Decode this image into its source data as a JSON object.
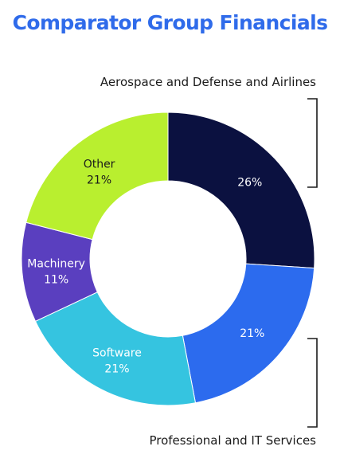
{
  "chart_data": {
    "type": "pie",
    "title": "Comparator Group Financials",
    "categories": [
      "Aerospace and Defense and Airlines",
      "Professional and IT Services",
      "Software",
      "Machinery",
      "Other"
    ],
    "values": [
      26,
      21,
      21,
      11,
      21
    ],
    "labels": [
      {
        "name": "",
        "percent": "26%"
      },
      {
        "name": "",
        "percent": "21%"
      },
      {
        "name": "Software",
        "percent": "21%"
      },
      {
        "name": "Machinery",
        "percent": "11%"
      },
      {
        "name": "Other",
        "percent": "21%"
      }
    ],
    "colors": [
      "#0b1140",
      "#2c6bee",
      "#35c4e0",
      "#5a3fbf",
      "#b9ef2f"
    ],
    "label_colors": [
      "#ffffff",
      "#ffffff",
      "#ffffff",
      "#ffffff",
      "#1b1b1b"
    ],
    "style": "donut"
  },
  "callouts": {
    "top": "Aerospace and Defense and Airlines",
    "bottom": "Professional and IT Services"
  }
}
